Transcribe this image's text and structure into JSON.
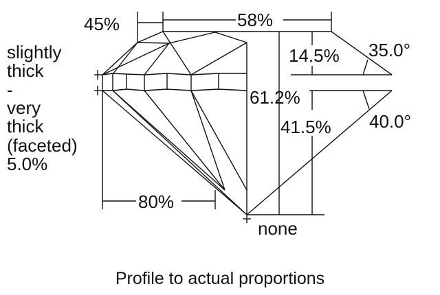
{
  "labels": {
    "crown_height_star": "45%",
    "table": "58%",
    "crown_height": "14.5%",
    "crown_angle": "35.0°",
    "total_depth": "61.2%",
    "pavilion_depth": "41.5%",
    "pavilion_angle": "40.0°",
    "lower_half": "80%",
    "culet": "none"
  },
  "girdle_lines": [
    "slightly",
    "thick",
    "-",
    "very",
    "thick",
    "(faceted)",
    "5.0%"
  ],
  "caption": "Profile to actual proportions"
}
